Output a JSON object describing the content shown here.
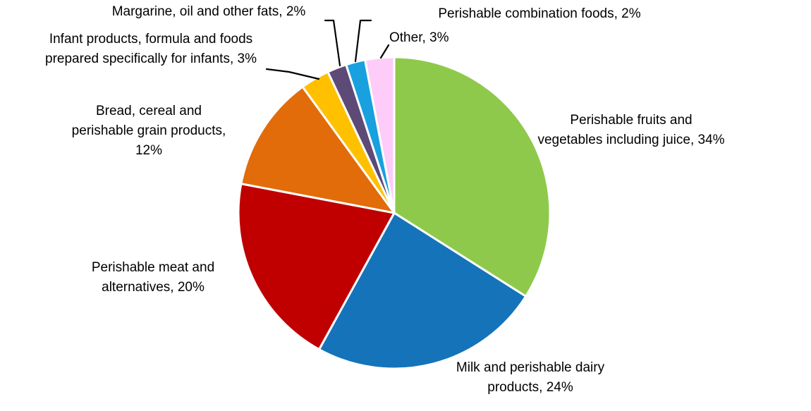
{
  "chart_data": {
    "type": "pie",
    "title": "",
    "unit": "%",
    "direction": "clockwise",
    "start_angle_deg": 0,
    "background": "#FFFFFF",
    "label_text_color": "#000000",
    "leader_line_color": "#000000",
    "slice_separator_color": "#FFFFFF",
    "slices": [
      {
        "id": "fruits",
        "label": "Perishable fruits and vegetables including juice",
        "value": 34,
        "color": "#8FC94B",
        "display_lines": [
          "Perishable fruits and",
          "vegetables including juice, 34%"
        ]
      },
      {
        "id": "milk",
        "label": "Milk and perishable dairy products",
        "value": 24,
        "color": "#1573BA",
        "display_lines": [
          "Milk and perishable dairy",
          "products, 24%"
        ]
      },
      {
        "id": "meat",
        "label": "Perishable meat and alternatives",
        "value": 20,
        "color": "#C00000",
        "display_lines": [
          "Perishable meat and",
          "alternatives, 20%"
        ]
      },
      {
        "id": "bread",
        "label": "Bread, cereal and perishable grain products",
        "value": 12,
        "color": "#E26B0A",
        "display_lines": [
          "Bread, cereal and",
          "perishable grain products,",
          "12%"
        ]
      },
      {
        "id": "infant",
        "label": "Infant products, formula and foods prepared specifically for infants",
        "value": 3,
        "color": "#FFC000",
        "display_lines": [
          "Infant products, formula and foods",
          "prepared specifically for infants, 3%"
        ]
      },
      {
        "id": "margarine",
        "label": "Margarine, oil and other fats",
        "value": 2,
        "color": "#5D4A77",
        "display_lines": [
          "Margarine, oil and other fats, 2%"
        ]
      },
      {
        "id": "combination",
        "label": "Perishable combination foods",
        "value": 2,
        "color": "#19A0DF",
        "display_lines": [
          "Perishable combination foods, 2%"
        ]
      },
      {
        "id": "other",
        "label": "Other",
        "value": 3,
        "color": "#FDCCF8",
        "display_lines": [
          "Other, 3%"
        ]
      }
    ]
  }
}
